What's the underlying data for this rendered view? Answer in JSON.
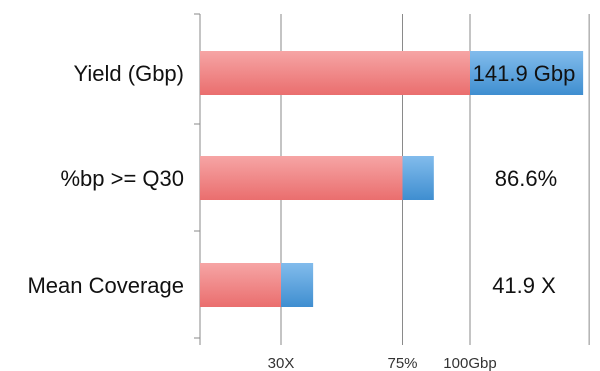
{
  "chart_data": {
    "type": "bar",
    "orientation": "horizontal",
    "stacked": true,
    "categories": [
      "Yield (Gbp)",
      "%bp >= Q30",
      "Mean Coverage"
    ],
    "series": [
      {
        "values": [
          100,
          75,
          30
        ],
        "color": "#f08080"
      },
      {
        "values": [
          41.9,
          11.6,
          11.9
        ],
        "color": "#4f9ad6"
      }
    ],
    "value_labels": [
      "141.9 Gbp",
      "86.6%",
      "41.9 X"
    ],
    "value_label_colors": [
      "#111111",
      "#111111",
      "#111111"
    ],
    "reference_ticks": [
      {
        "value": 30,
        "label": "30X"
      },
      {
        "value": 75,
        "label": "75%"
      },
      {
        "value": 100,
        "label": "100Gbp"
      }
    ],
    "xlim": [
      0,
      141.9
    ],
    "grid": true,
    "legend": "none",
    "title": "",
    "xlabel": "",
    "ylabel": ""
  }
}
